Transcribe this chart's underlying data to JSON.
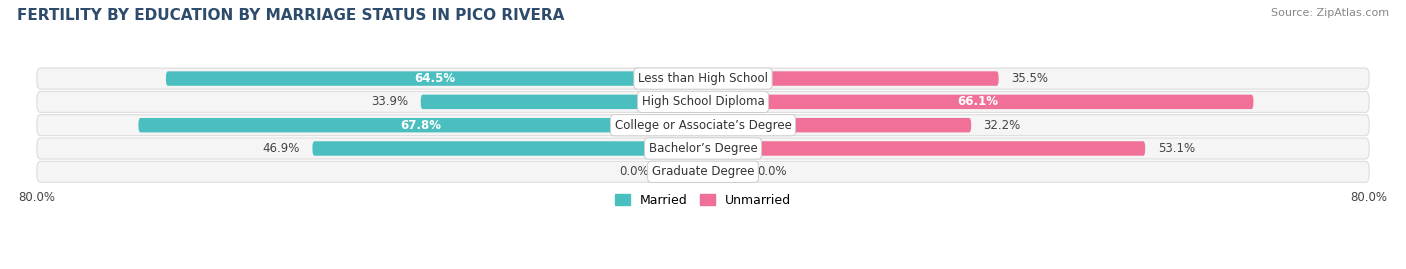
{
  "title": "FERTILITY BY EDUCATION BY MARRIAGE STATUS IN PICO RIVERA",
  "source": "Source: ZipAtlas.com",
  "categories": [
    "Less than High School",
    "High School Diploma",
    "College or Associate’s Degree",
    "Bachelor’s Degree",
    "Graduate Degree"
  ],
  "married": [
    64.5,
    33.9,
    67.8,
    46.9,
    0.0
  ],
  "unmarried": [
    35.5,
    66.1,
    32.2,
    53.1,
    0.0
  ],
  "married_color": "#4BBFBF",
  "married_color_light": "#9DD4D4",
  "unmarried_color": "#F07097",
  "unmarried_color_light": "#F0B0C8",
  "bar_bg_color": "#E8E8E8",
  "row_bg_color": "#F5F5F5",
  "row_border_color": "#DDDDDD",
  "axis_limit": 80.0,
  "title_fontsize": 11,
  "source_fontsize": 8,
  "label_fontsize": 8.5,
  "cat_fontsize": 8.5,
  "bar_height": 0.62,
  "background_color": "#FFFFFF",
  "text_dark": "#444444",
  "text_white": "#FFFFFF"
}
